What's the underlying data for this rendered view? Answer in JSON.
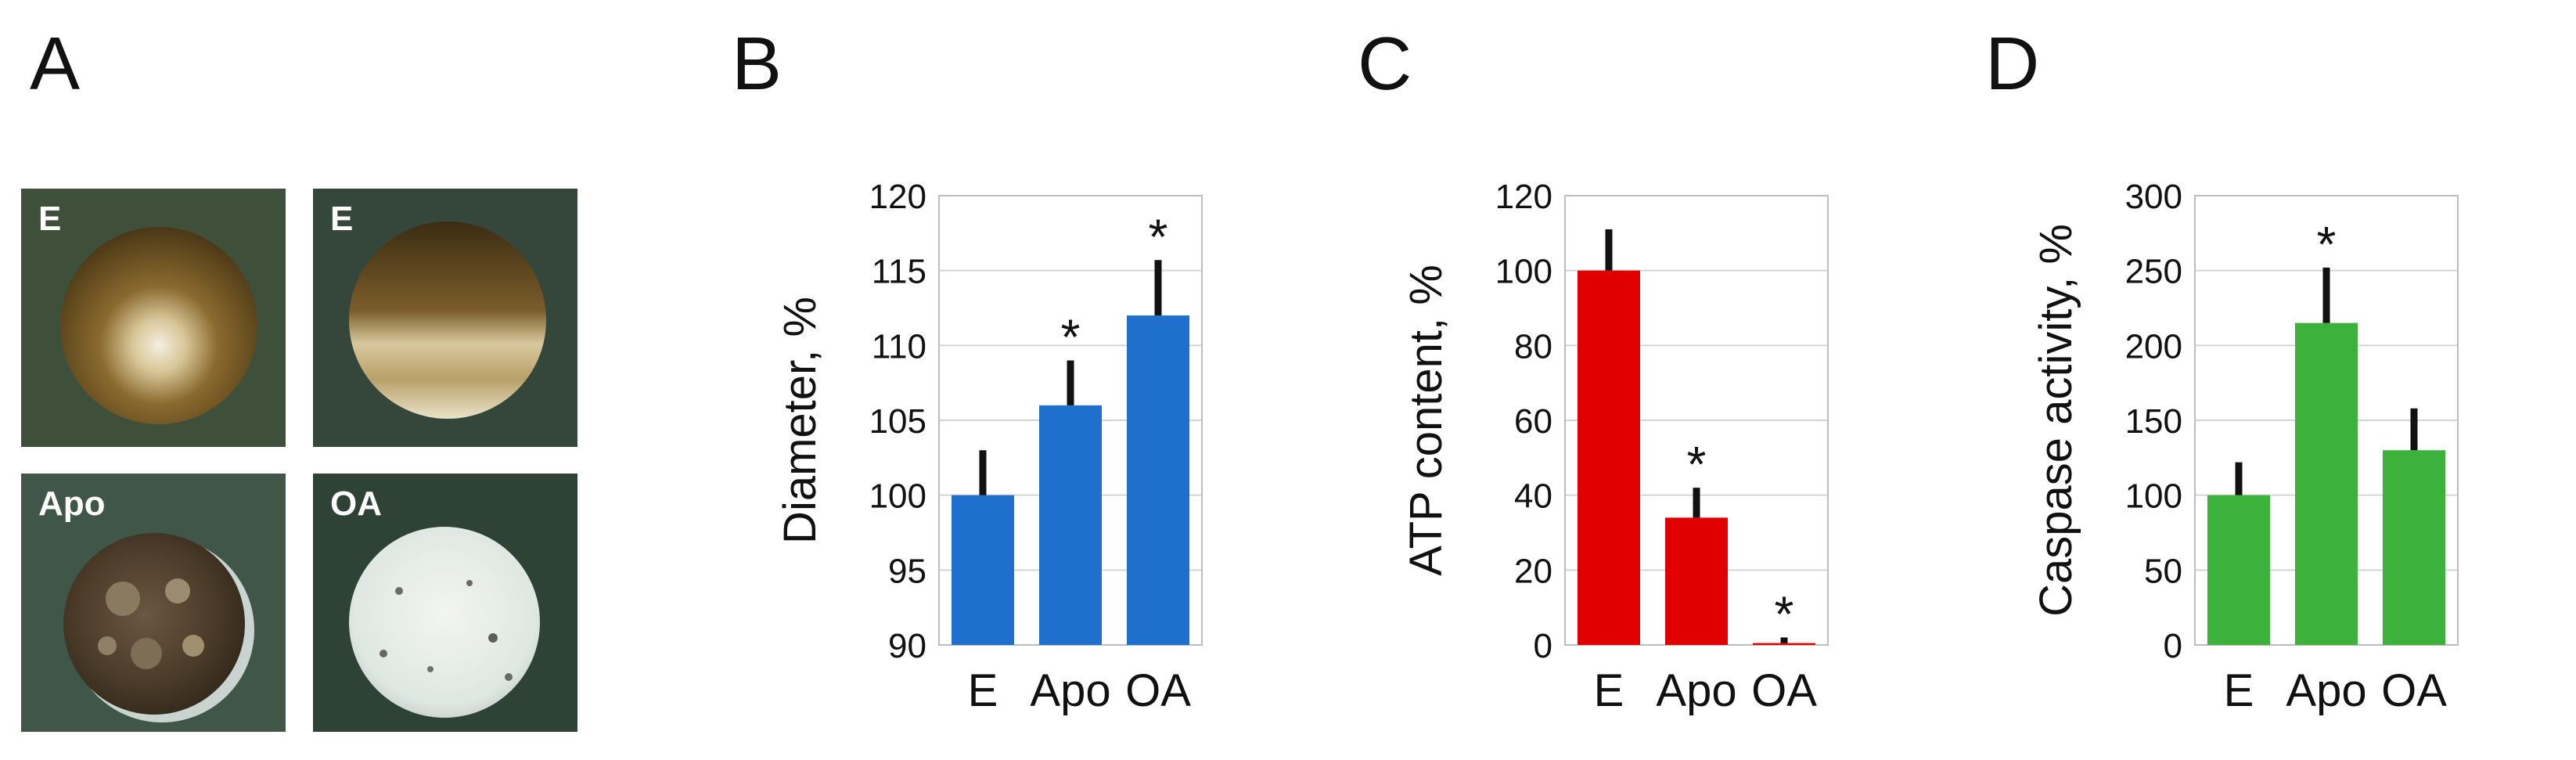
{
  "panels": {
    "A": "A",
    "B": "B",
    "C": "C",
    "D": "D"
  },
  "photos": [
    {
      "label": "E",
      "description": "brown embryo, animal pole"
    },
    {
      "label": "E",
      "description": "brown embryo, side view"
    },
    {
      "label": "Apo",
      "description": "mottled dark embryo"
    },
    {
      "label": "OA",
      "description": "pale white embryo"
    }
  ],
  "colors": {
    "blue": "#1f6fcc",
    "red": "#e00000",
    "green": "#3cb23c"
  },
  "chart_data": [
    {
      "type": "bar",
      "categories": [
        "E",
        "Apo",
        "OA"
      ],
      "values": [
        100,
        106,
        112
      ],
      "errors": [
        3,
        3,
        3.7
      ],
      "significance": [
        "",
        "*",
        "*"
      ],
      "ylabel": "Diameter, %",
      "ylim": [
        90,
        120
      ],
      "yticks": [
        90,
        95,
        100,
        105,
        110,
        115,
        120
      ],
      "color": "#1f6fcc"
    },
    {
      "type": "bar",
      "categories": [
        "E",
        "Apo",
        "OA"
      ],
      "values": [
        100,
        34,
        0.5
      ],
      "errors": [
        11,
        8,
        1.5
      ],
      "significance": [
        "",
        "*",
        "*"
      ],
      "ylabel": "ATP content, %",
      "ylim": [
        0,
        120
      ],
      "yticks": [
        0,
        20,
        40,
        60,
        80,
        100,
        120
      ],
      "color": "#e00000"
    },
    {
      "type": "bar",
      "categories": [
        "E",
        "Apo",
        "OA"
      ],
      "values": [
        100,
        215,
        130
      ],
      "errors": [
        22,
        37,
        28
      ],
      "significance": [
        "",
        "*",
        ""
      ],
      "ylabel": "Caspase activity, %",
      "ylim": [
        0,
        300
      ],
      "yticks": [
        0,
        50,
        100,
        150,
        200,
        250,
        300
      ],
      "color": "#3cb23c"
    }
  ]
}
